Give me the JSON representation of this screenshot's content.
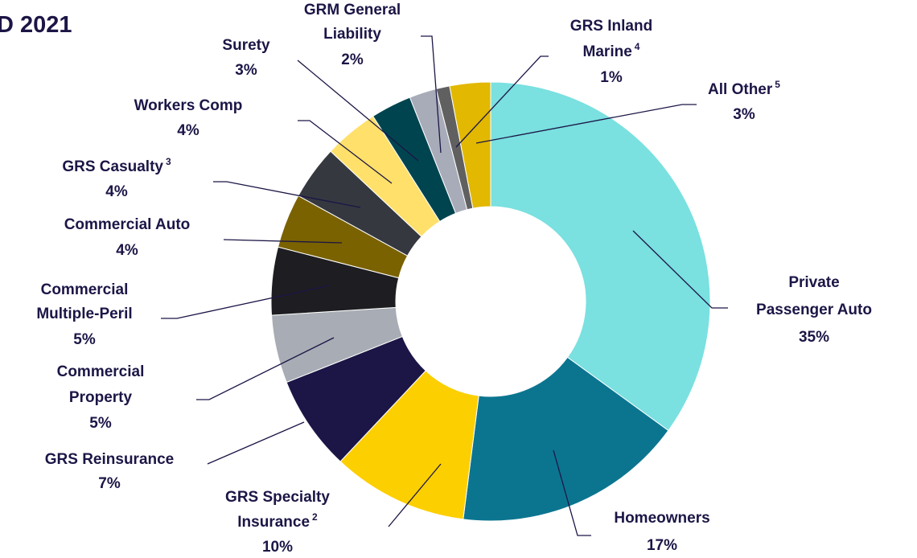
{
  "chart_data": {
    "type": "donut",
    "title": "D 2021",
    "categories": [
      [
        "Private",
        "Passenger Auto"
      ],
      [
        "Homeowners"
      ],
      [
        "GRS Specialty",
        "Insurance"
      ],
      [
        "GRS Reinsurance"
      ],
      [
        "Commercial",
        "Property"
      ],
      [
        "Commercial",
        "Multiple-Peril"
      ],
      [
        "Commercial Auto"
      ],
      [
        "GRS Casualty"
      ],
      [
        "Workers Comp"
      ],
      [
        "Surety"
      ],
      [
        "GRM General",
        "Liability"
      ],
      [
        "GRS Inland",
        "Marine"
      ],
      [
        "All Other"
      ]
    ],
    "footnotes": [
      null,
      null,
      "2",
      null,
      null,
      null,
      null,
      "3",
      null,
      null,
      null,
      "4",
      "5"
    ],
    "values": [
      35,
      17,
      10,
      7,
      5,
      5,
      4,
      4,
      4,
      3,
      2,
      1,
      3
    ],
    "value_labels": [
      "35%",
      "17%",
      "10%",
      "7%",
      "5%",
      "5%",
      "4%",
      "4%",
      "4%",
      "3%",
      "2%",
      "1%",
      "3%"
    ],
    "colors": [
      "#7ae0e0",
      "#0b7590",
      "#fccf00",
      "#1b1646",
      "#a8acb4",
      "#1e1e22",
      "#7a6200",
      "#363840",
      "#ffe06a",
      "#004450",
      "#a8acb8",
      "#606060",
      "#e2b800"
    ]
  }
}
